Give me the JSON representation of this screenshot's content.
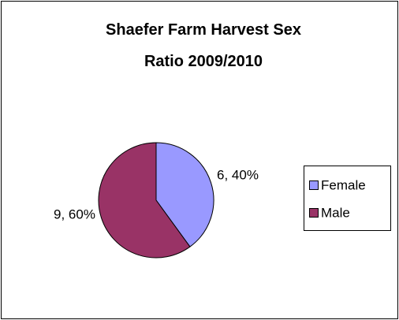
{
  "chart_data": {
    "type": "pie",
    "title": "Shaefer Farm Harvest Sex Ratio 2009/2010",
    "categories": [
      "Female",
      "Male"
    ],
    "values": [
      6,
      9
    ],
    "value_labels": [
      "6, 40%",
      "9, 60%"
    ],
    "colors": [
      "#9999ff",
      "#993366"
    ],
    "legend": "right"
  }
}
